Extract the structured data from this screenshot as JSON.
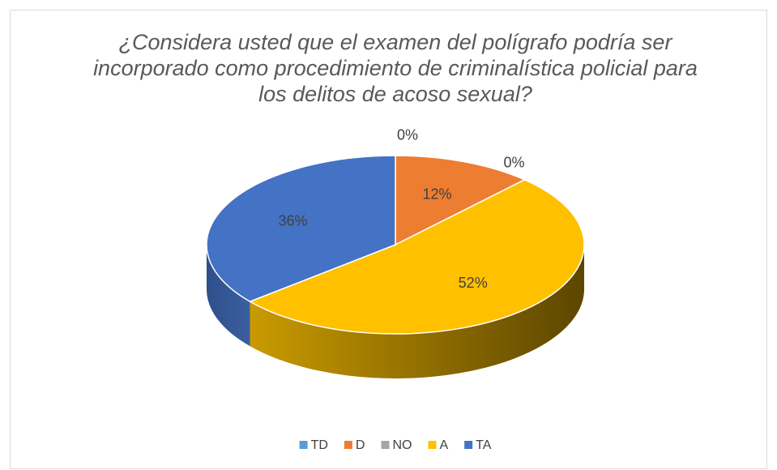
{
  "chart_data": {
    "type": "pie3d",
    "title": "¿Considera usted que el examen del polígrafo podría ser incorporado como procedimiento de criminalística policial para los delitos de acoso sexual?",
    "categories": [
      "TD",
      "D",
      "NO",
      "A",
      "TA"
    ],
    "values": [
      0,
      12,
      0,
      52,
      36
    ],
    "value_labels": [
      "0%",
      "12%",
      "0%",
      "52%",
      "36%"
    ],
    "colors": [
      "#5b9bd5",
      "#ed7d31",
      "#a5a5a5",
      "#ffc000",
      "#4472c4"
    ],
    "legend": "bottom"
  }
}
